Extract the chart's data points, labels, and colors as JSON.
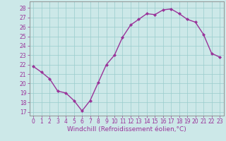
{
  "x": [
    0,
    1,
    2,
    3,
    4,
    5,
    6,
    7,
    8,
    9,
    10,
    11,
    12,
    13,
    14,
    15,
    16,
    17,
    18,
    19,
    20,
    21,
    22,
    23
  ],
  "y": [
    21.8,
    21.2,
    20.5,
    19.2,
    19.0,
    18.2,
    17.1,
    18.2,
    20.1,
    22.0,
    23.0,
    24.9,
    26.2,
    26.8,
    27.4,
    27.3,
    27.8,
    27.9,
    27.4,
    26.8,
    26.5,
    25.2,
    23.2,
    22.8
  ],
  "line_color": "#993399",
  "marker": "D",
  "marker_size": 2,
  "bg_color": "#cce8e8",
  "grid_color": "#99cccc",
  "ylabel_ticks": [
    17,
    18,
    19,
    20,
    21,
    22,
    23,
    24,
    25,
    26,
    27,
    28
  ],
  "ylim": [
    16.6,
    28.7
  ],
  "xlim": [
    -0.5,
    23.5
  ],
  "xlabel": "Windchill (Refroidissement éolien,°C)",
  "xtick_labels": [
    "0",
    "1",
    "2",
    "3",
    "4",
    "5",
    "6",
    "7",
    "8",
    "9",
    "10",
    "11",
    "12",
    "13",
    "14",
    "15",
    "16",
    "17",
    "18",
    "19",
    "20",
    "21",
    "22",
    "23"
  ],
  "tick_fontsize": 5.5,
  "xlabel_fontsize": 6.5,
  "line_width": 1.0
}
